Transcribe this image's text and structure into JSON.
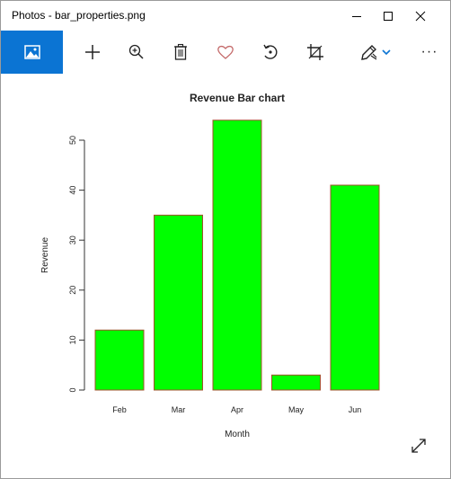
{
  "window": {
    "title": "Photos - bar_properties.png"
  },
  "toolbar": {
    "items": [
      "photo-view-icon",
      "add-icon",
      "zoom-icon",
      "delete-icon",
      "favorite-icon",
      "rotate-icon",
      "crop-icon",
      "edit-draw-icon",
      "more-icon"
    ],
    "more_label": "···"
  },
  "colors": {
    "accent": "#0b74d3",
    "bar_fill": "#00ff00",
    "bar_stroke": "#a0522d",
    "heart": "#c46a6a"
  },
  "chart_data": {
    "type": "bar",
    "title": "Revenue Bar chart",
    "xlabel": "Month",
    "ylabel": "Revenue",
    "categories": [
      "Feb",
      "Mar",
      "Apr",
      "May",
      "Jun"
    ],
    "values": [
      12,
      35,
      54,
      3,
      41
    ],
    "ylim": [
      0,
      50
    ],
    "yticks": [
      0,
      10,
      20,
      30,
      40,
      50
    ],
    "grid": false,
    "legend": "none"
  }
}
